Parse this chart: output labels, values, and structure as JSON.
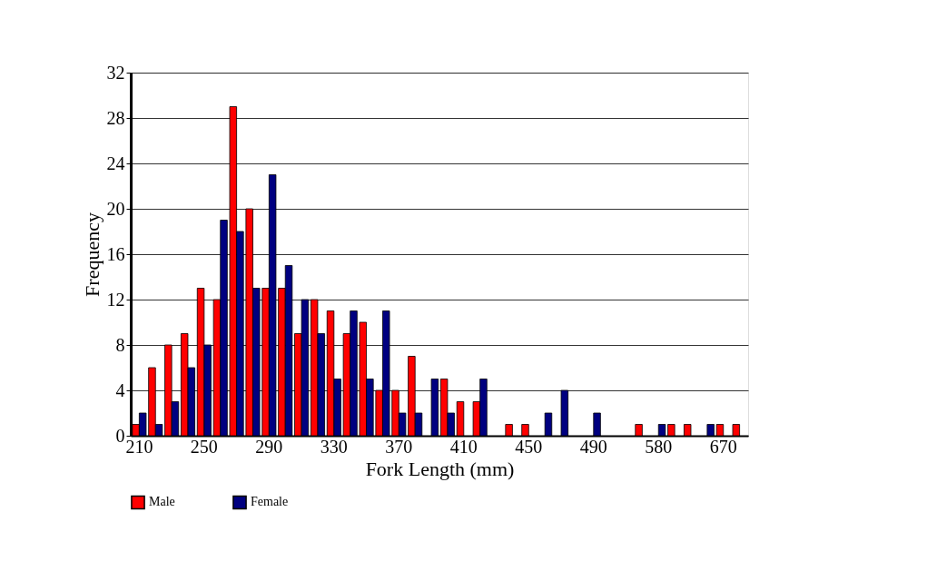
{
  "chart_data": {
    "type": "bar",
    "xlabel": "Fork Length (mm)",
    "ylabel": "Frequency",
    "categories": [
      "210",
      null,
      null,
      null,
      "250",
      null,
      null,
      null,
      "290",
      null,
      null,
      null,
      "330",
      null,
      null,
      null,
      "370",
      null,
      null,
      null,
      "410",
      null,
      null,
      null,
      "450",
      null,
      null,
      null,
      "490",
      null,
      null,
      null,
      "580",
      null,
      null,
      null,
      "670",
      null
    ],
    "series": [
      {
        "name": "Male",
        "color": "#ff0000",
        "values": [
          1,
          6,
          8,
          9,
          13,
          12,
          29,
          20,
          13,
          13,
          9,
          12,
          11,
          9,
          10,
          4,
          4,
          7,
          0,
          5,
          3,
          3,
          0,
          1,
          1,
          0,
          0,
          0,
          0,
          0,
          0,
          1,
          0,
          1,
          1,
          0,
          1,
          1
        ]
      },
      {
        "name": "Female",
        "color": "#000080",
        "values": [
          2,
          1,
          3,
          6,
          8,
          19,
          18,
          13,
          23,
          15,
          12,
          9,
          5,
          11,
          5,
          11,
          2,
          2,
          5,
          2,
          0,
          5,
          0,
          0,
          0,
          2,
          4,
          0,
          2,
          0,
          0,
          0,
          1,
          0,
          0,
          1,
          0,
          0
        ]
      }
    ],
    "ylim": [
      0,
      32
    ],
    "yticks": [
      0,
      4,
      8,
      12,
      16,
      20,
      24,
      28,
      32
    ],
    "grid": "y",
    "legend": "bottom"
  }
}
